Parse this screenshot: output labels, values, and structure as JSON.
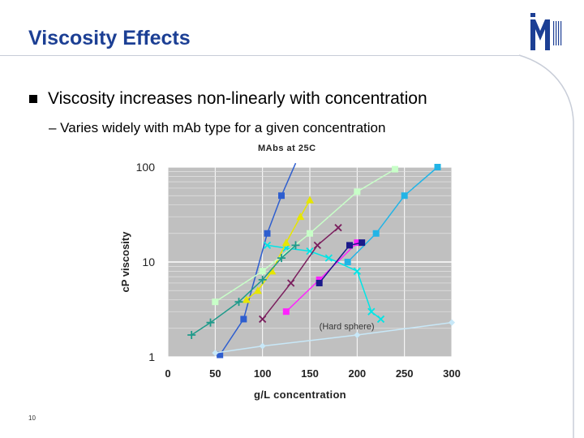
{
  "slide": {
    "title": "Viscosity Effects",
    "bullet": "Viscosity increases non-linearly with concentration",
    "sub_bullet": "– Varies widely with mAb type for a given concentration",
    "page_number": "10",
    "accent_color": "#1c3f94"
  },
  "chart_data": {
    "type": "line",
    "title": "MAbs at 25C",
    "xlabel": "g/L concentration",
    "ylabel": "cP viscosity",
    "xlim": [
      0,
      300
    ],
    "ylim": [
      1,
      100
    ],
    "y_scale": "log",
    "grid": true,
    "x_ticks": [
      "0",
      "50",
      "100",
      "150",
      "200",
      "250",
      "300"
    ],
    "y_ticks": [
      "1",
      "10",
      "100"
    ],
    "annotation": "(Hard sphere)",
    "series": [
      {
        "color": "#2e5ecf",
        "marker": "square",
        "x": [
          55,
          80,
          105,
          120,
          135
        ],
        "y": [
          1.05,
          2.5,
          20,
          50,
          110
        ]
      },
      {
        "color": "#00e5e5",
        "marker": "x",
        "x": [
          225,
          215,
          200,
          170,
          150,
          125,
          105
        ],
        "y": [
          2.5,
          3,
          8,
          11,
          13,
          14,
          15
        ]
      },
      {
        "color": "#e6e600",
        "marker": "triangle",
        "x": [
          83,
          95,
          110,
          125,
          140,
          150
        ],
        "y": [
          4,
          5,
          8,
          16,
          30,
          45
        ]
      },
      {
        "color": "#c8ffc8",
        "marker": "square",
        "x": [
          50,
          100,
          150,
          200,
          240
        ],
        "y": [
          3.8,
          8,
          20,
          55,
          95
        ]
      },
      {
        "color": "#1e9a8a",
        "marker": "plus",
        "x": [
          25,
          45,
          75,
          100,
          120,
          135
        ],
        "y": [
          1.7,
          2.3,
          3.8,
          6.5,
          11,
          15
        ]
      },
      {
        "color": "#22b4e6",
        "marker": "square",
        "x": [
          190,
          220,
          250,
          285
        ],
        "y": [
          10,
          20,
          50,
          100
        ]
      },
      {
        "color": "#7b1f5e",
        "marker": "x",
        "x": [
          100,
          130,
          158,
          180
        ],
        "y": [
          2.5,
          6,
          15,
          23
        ]
      },
      {
        "color": "#ff22ff",
        "marker": "square",
        "x": [
          125,
          160,
          200
        ],
        "y": [
          3,
          6.5,
          16
        ]
      },
      {
        "color": "#1a1a8a",
        "marker": "square",
        "x": [
          160,
          192,
          205
        ],
        "y": [
          6,
          15,
          16
        ]
      },
      {
        "color": "#c8e8f8",
        "marker": "diamond",
        "x": [
          50,
          100,
          200,
          300
        ],
        "y": [
          1.1,
          1.3,
          1.7,
          2.3
        ],
        "name": "(Hard sphere)"
      }
    ]
  }
}
